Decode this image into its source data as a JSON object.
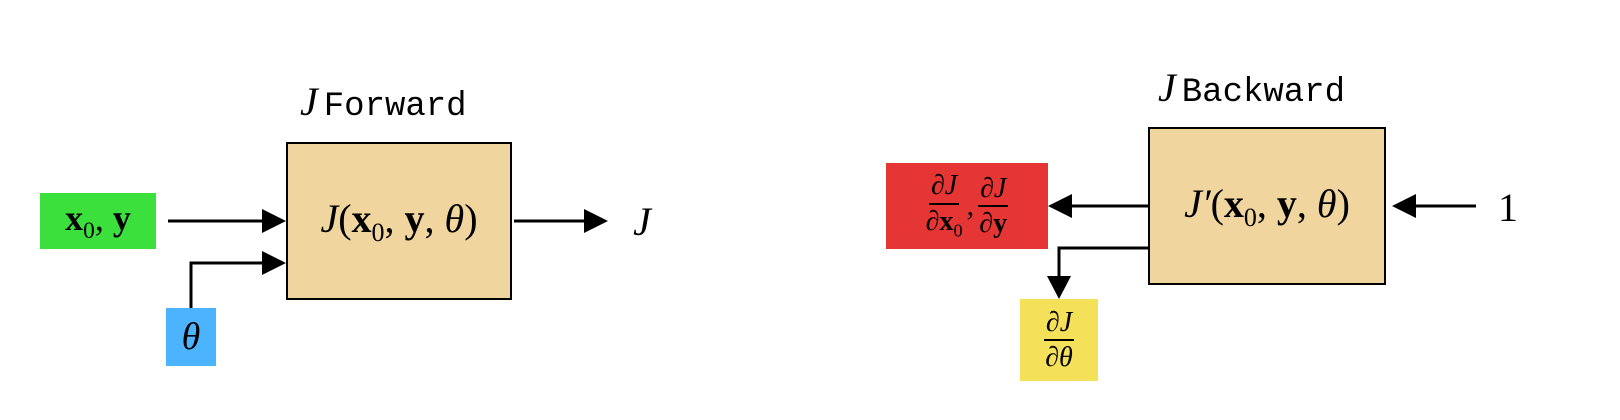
{
  "forward": {
    "title_var": "J",
    "title_word": "Forward",
    "box_func": "J",
    "box_args": [
      "x",
      "0",
      "y",
      "θ"
    ],
    "input_xy": [
      "x",
      "0",
      "y"
    ],
    "input_theta": "θ",
    "output": "J",
    "colors": {
      "box": "#f0d59e",
      "xy": "#3ce03c",
      "theta": "#4cb3ff"
    }
  },
  "backward": {
    "title_var": "J",
    "title_word": "Backward",
    "box_func": "J′",
    "box_args": [
      "x",
      "0",
      "y",
      "θ"
    ],
    "input": "1",
    "grad_xy": {
      "num": "∂J",
      "den1": "∂x",
      "den1_sub": "0",
      "den2": "∂y"
    },
    "grad_theta": {
      "num": "∂J",
      "den": "∂θ"
    },
    "colors": {
      "box": "#f0d59e",
      "grad_xy": "#e63535",
      "grad_theta": "#f5e05a"
    }
  }
}
